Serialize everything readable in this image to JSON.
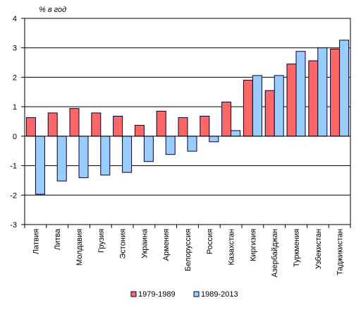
{
  "chart_data": {
    "type": "bar",
    "unit_label": "% в год",
    "categories": [
      "Латвия",
      "Литва",
      "Молдавия",
      "Грузия",
      "Эстония",
      "Украина",
      "Армения",
      "Белоруссия",
      "Россия",
      "Казахстан",
      "Киргизия",
      "Азербайджан",
      "Туркмения",
      "Узбекистан",
      "Таджикистан"
    ],
    "series": [
      {
        "name": "1979-1989",
        "color": "#ff6666",
        "values": [
          0.63,
          0.79,
          0.94,
          0.79,
          0.68,
          0.37,
          0.85,
          0.63,
          0.68,
          1.16,
          1.9,
          1.55,
          2.45,
          2.56,
          2.96
        ]
      },
      {
        "name": "1989-2013",
        "color": "#99ccff",
        "values": [
          -1.97,
          -1.52,
          -1.41,
          -1.32,
          -1.23,
          -0.86,
          -0.62,
          -0.51,
          -0.19,
          0.19,
          2.06,
          2.06,
          2.88,
          3.0,
          3.26
        ]
      }
    ],
    "ylim": [
      -3,
      4
    ],
    "yticks": [
      "-3",
      "-2",
      "-1",
      "0",
      "1",
      "2",
      "3",
      "4"
    ],
    "grid": true,
    "legend_position": "bottom-center"
  }
}
